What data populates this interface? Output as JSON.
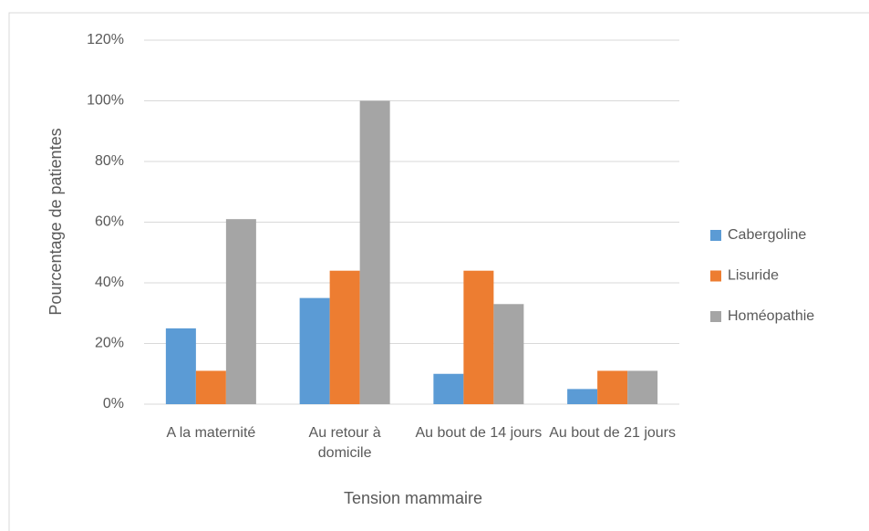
{
  "chart_data": {
    "type": "bar",
    "x_label": "Tension mammaire",
    "y_label": "Pourcentage de patientes",
    "categories": [
      "A la maternité",
      "Au retour à domicile",
      "Au bout de 14 jours",
      "Au bout de 21 jours"
    ],
    "series": [
      {
        "name": "Cabergoline",
        "color": "#5b9bd5",
        "values": [
          25,
          35,
          10,
          5
        ]
      },
      {
        "name": "Lisuride",
        "color": "#ed7d31",
        "values": [
          11,
          44,
          44,
          11
        ]
      },
      {
        "name": "Homéopathie",
        "color": "#a5a5a5",
        "values": [
          61,
          100,
          33,
          11
        ]
      }
    ],
    "ylim": [
      0,
      120
    ],
    "yticks": [
      {
        "value": 0,
        "label": "0%"
      },
      {
        "value": 20,
        "label": "20%"
      },
      {
        "value": 40,
        "label": "40%"
      },
      {
        "value": 60,
        "label": "60%"
      },
      {
        "value": 80,
        "label": "80%"
      },
      {
        "value": 100,
        "label": "100%"
      },
      {
        "value": 120,
        "label": "120%"
      }
    ],
    "grid": true,
    "legend": "right"
  }
}
